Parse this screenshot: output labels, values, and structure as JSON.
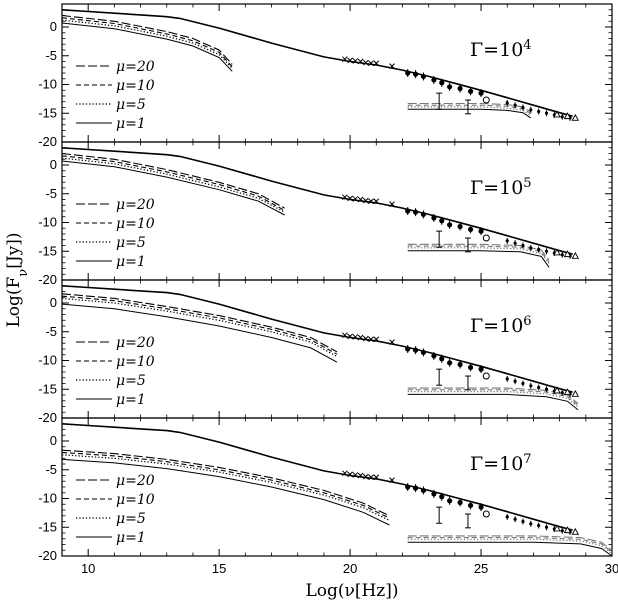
{
  "chart_data": {
    "type": "line",
    "xlabel": "Log(ν[Hz])",
    "ylabel": "Log(Fν[Jy])",
    "xlim": [
      9,
      30
    ],
    "ylim": [
      -20,
      4
    ],
    "xticks": [
      10,
      15,
      20,
      25,
      30
    ],
    "yticks": [
      0,
      -5,
      -10,
      -15,
      -20
    ],
    "grid": false,
    "legend_position": "bottom-left",
    "legend": [
      {
        "label": "μ=20",
        "style": "long-dash"
      },
      {
        "label": "μ=10",
        "style": "dash"
      },
      {
        "label": "μ=5",
        "style": "dotted"
      },
      {
        "label": "μ=1",
        "style": "solid"
      }
    ],
    "panels": [
      {
        "gamma_label": "Γ=10",
        "gamma_exp": "4",
        "low_curves": {
          "mu20": {
            "x": [
              9,
              11,
              13,
              14,
              15,
              15.5
            ],
            "y": [
              2.0,
              1.0,
              -0.8,
              -2.0,
              -4.0,
              -6.5
            ]
          },
          "mu10": {
            "x": [
              9,
              11,
              13,
              14,
              15,
              15.5
            ],
            "y": [
              1.6,
              0.6,
              -1.2,
              -2.4,
              -4.4,
              -6.9
            ]
          },
          "mu5": {
            "x": [
              9,
              11,
              13,
              14,
              15,
              15.5
            ],
            "y": [
              1.2,
              0.2,
              -1.6,
              -2.8,
              -4.8,
              -7.2
            ]
          },
          "mu1": {
            "x": [
              9,
              11,
              13,
              14,
              15,
              15.5
            ],
            "y": [
              0.7,
              -0.3,
              -2.1,
              -3.3,
              -5.3,
              -7.7
            ]
          }
        },
        "high_curves": {
          "mu20": {
            "x": [
              22.2,
              25,
              26,
              26.6,
              26.9
            ],
            "y": [
              -13.3,
              -13.3,
              -13.5,
              -13.9,
              -14.8
            ]
          },
          "mu10": {
            "x": [
              22.2,
              25,
              26,
              26.6,
              26.9
            ],
            "y": [
              -13.6,
              -13.6,
              -13.8,
              -14.2,
              -15.1
            ]
          },
          "mu5": {
            "x": [
              22.2,
              25,
              26,
              26.6,
              26.9
            ],
            "y": [
              -13.9,
              -13.9,
              -14.1,
              -14.5,
              -15.4
            ]
          },
          "mu1": {
            "x": [
              22.2,
              25,
              26,
              26.6,
              26.9
            ],
            "y": [
              -14.3,
              -14.3,
              -14.5,
              -14.9,
              -15.8
            ]
          }
        }
      },
      {
        "gamma_label": "Γ=10",
        "gamma_exp": "5",
        "low_curves": {
          "mu20": {
            "x": [
              9,
              11,
              13,
              15,
              16.5,
              17.5
            ],
            "y": [
              2.0,
              1.0,
              -0.8,
              -3.0,
              -5.0,
              -7.5
            ]
          },
          "mu10": {
            "x": [
              9,
              11,
              13,
              15,
              16.5,
              17.5
            ],
            "y": [
              1.6,
              0.6,
              -1.2,
              -3.4,
              -5.4,
              -7.9
            ]
          },
          "mu5": {
            "x": [
              9,
              11,
              13,
              15,
              16.5,
              17.5
            ],
            "y": [
              1.2,
              0.2,
              -1.6,
              -3.8,
              -5.8,
              -8.2
            ]
          },
          "mu1": {
            "x": [
              9,
              11,
              13,
              15,
              16.5,
              17.5
            ],
            "y": [
              0.7,
              -0.3,
              -2.1,
              -4.3,
              -6.3,
              -8.7
            ]
          }
        },
        "high_curves": {
          "mu20": {
            "x": [
              22.2,
              25,
              26.5,
              27.3,
              27.6
            ],
            "y": [
              -13.8,
              -13.8,
              -14.0,
              -14.8,
              -16.5
            ]
          },
          "mu10": {
            "x": [
              22.2,
              25,
              26.5,
              27.3,
              27.6
            ],
            "y": [
              -14.1,
              -14.1,
              -14.3,
              -15.1,
              -16.9
            ]
          },
          "mu5": {
            "x": [
              22.2,
              25,
              26.5,
              27.3,
              27.6
            ],
            "y": [
              -14.4,
              -14.4,
              -14.6,
              -15.4,
              -17.2
            ]
          },
          "mu1": {
            "x": [
              22.2,
              25,
              26.5,
              27.3,
              27.6
            ],
            "y": [
              -14.9,
              -14.9,
              -15.1,
              -15.9,
              -17.8
            ]
          }
        }
      },
      {
        "gamma_label": "Γ=10",
        "gamma_exp": "6",
        "low_curves": {
          "mu20": {
            "x": [
              9,
              11,
              13,
              15,
              17,
              18.5,
              19.5
            ],
            "y": [
              1.6,
              0.8,
              -0.6,
              -2.2,
              -4.2,
              -6.0,
              -8.5
            ]
          },
          "mu10": {
            "x": [
              9,
              11,
              13,
              15,
              17,
              18.5,
              19.5
            ],
            "y": [
              1.2,
              0.4,
              -1.0,
              -2.6,
              -4.6,
              -6.4,
              -8.9
            ]
          },
          "mu5": {
            "x": [
              9,
              11,
              13,
              15,
              17,
              18.5,
              19.5
            ],
            "y": [
              0.8,
              0.0,
              -1.4,
              -3.0,
              -5.0,
              -6.8,
              -9.3
            ]
          },
          "mu1": {
            "x": [
              9,
              11,
              13,
              15,
              17,
              18.5,
              19.5
            ],
            "y": [
              -0.2,
              -1.0,
              -2.4,
              -4.0,
              -6.0,
              -7.8,
              -10.3
            ]
          }
        },
        "high_curves": {
          "mu20": {
            "x": [
              22.2,
              26,
              27.5,
              28.3,
              28.7
            ],
            "y": [
              -14.8,
              -14.8,
              -15.2,
              -16.0,
              -17.5
            ]
          },
          "mu10": {
            "x": [
              22.2,
              26,
              27.5,
              28.3,
              28.7
            ],
            "y": [
              -15.1,
              -15.1,
              -15.5,
              -16.3,
              -17.8
            ]
          },
          "mu5": {
            "x": [
              22.2,
              26,
              27.5,
              28.3,
              28.7
            ],
            "y": [
              -15.4,
              -15.4,
              -15.8,
              -16.6,
              -18.1
            ]
          },
          "mu1": {
            "x": [
              22.2,
              26,
              27.5,
              28.3,
              28.7
            ],
            "y": [
              -15.9,
              -15.9,
              -16.3,
              -17.1,
              -18.6
            ]
          }
        }
      },
      {
        "gamma_label": "Γ=10",
        "gamma_exp": "7",
        "low_curves": {
          "mu20": {
            "x": [
              9,
              11,
              13,
              15,
              17,
              19,
              20.5,
              21.5
            ],
            "y": [
              -1.6,
              -2.2,
              -3.2,
              -4.6,
              -6.4,
              -8.6,
              -10.8,
              -13.0
            ]
          },
          "mu10": {
            "x": [
              9,
              11,
              13,
              15,
              17,
              19,
              20.5,
              21.5
            ],
            "y": [
              -2.0,
              -2.6,
              -3.6,
              -5.0,
              -6.8,
              -9.0,
              -11.2,
              -13.4
            ]
          },
          "mu5": {
            "x": [
              9,
              11,
              13,
              15,
              17,
              19,
              20.5,
              21.5
            ],
            "y": [
              -2.4,
              -3.0,
              -4.0,
              -5.4,
              -7.2,
              -9.4,
              -11.6,
              -13.8
            ]
          },
          "mu1": {
            "x": [
              9,
              11,
              13,
              15,
              17,
              19,
              20.5,
              21.5
            ],
            "y": [
              -3.2,
              -3.8,
              -4.8,
              -6.2,
              -8.0,
              -10.2,
              -12.4,
              -14.6
            ]
          }
        },
        "high_curves": {
          "mu20": {
            "x": [
              22.2,
              27,
              28.8,
              29.6,
              30
            ],
            "y": [
              -16.5,
              -16.5,
              -16.8,
              -17.6,
              -19.0
            ]
          },
          "mu10": {
            "x": [
              22.2,
              27,
              28.8,
              29.6,
              30
            ],
            "y": [
              -16.8,
              -16.8,
              -17.1,
              -17.9,
              -19.3
            ]
          },
          "mu5": {
            "x": [
              22.2,
              27,
              28.8,
              29.6,
              30
            ],
            "y": [
              -17.1,
              -17.1,
              -17.4,
              -18.2,
              -19.6
            ]
          },
          "mu1": {
            "x": [
              22.2,
              27,
              28.8,
              29.6,
              30
            ],
            "y": [
              -17.6,
              -17.6,
              -17.9,
              -18.7,
              -20.0
            ]
          }
        }
      }
    ],
    "reference_curve": {
      "x": [
        9,
        10,
        11,
        12,
        13,
        13.5,
        15,
        17,
        19,
        20,
        21,
        22,
        23,
        24,
        25,
        26,
        27,
        28,
        28.5
      ],
      "y": [
        3.0,
        2.7,
        2.4,
        2.1,
        1.8,
        1.5,
        -0.2,
        -2.8,
        -5.2,
        -6.0,
        -6.6,
        -7.5,
        -8.6,
        -9.8,
        -11.0,
        -12.3,
        -13.6,
        -14.9,
        -15.5
      ]
    },
    "observations": {
      "crosses": {
        "x": [
          19.8,
          20.0,
          20.2,
          20.4,
          20.6,
          20.8,
          21.0,
          21.6
        ],
        "y": [
          -5.6,
          -5.8,
          -5.9,
          -6.0,
          -6.2,
          -6.3,
          -6.3,
          -6.8
        ]
      },
      "filled_circles": {
        "x": [
          22.2,
          22.5,
          22.8,
          23.2,
          23.5,
          23.8,
          24.2,
          24.6,
          25.0
        ],
        "y": [
          -8.0,
          -8.2,
          -8.6,
          -9.2,
          -9.7,
          -10.4,
          -10.7,
          -11.2,
          -11.5
        ]
      },
      "error_bar_points": {
        "x": [
          23.4,
          24.5
        ],
        "y": [
          -12.9,
          -13.9
        ],
        "err": [
          1.4,
          1.2
        ]
      },
      "open_circle": {
        "x": [
          25.2
        ],
        "y": [
          -12.7
        ]
      },
      "tev_band": {
        "x": [
          26.0,
          26.3,
          26.6,
          26.9,
          27.2,
          27.5,
          27.8,
          28.1,
          28.4
        ],
        "y": [
          -13.2,
          -13.6,
          -14.0,
          -14.4,
          -14.7,
          -15.0,
          -15.3,
          -15.6,
          -15.8
        ]
      },
      "triangles": {
        "x": [
          27.9,
          28.3,
          28.6
        ],
        "y": [
          -15.2,
          -15.5,
          -15.8
        ]
      }
    }
  }
}
